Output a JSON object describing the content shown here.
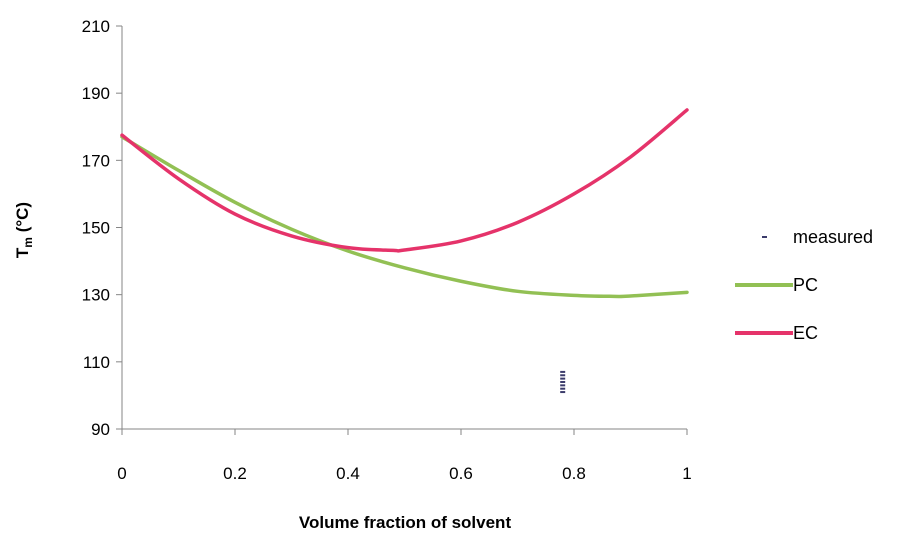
{
  "chart_data": {
    "type": "line",
    "xlabel": "Volume fraction of solvent",
    "ylabel_main": "T",
    "ylabel_sub": "m",
    "ylabel_unit": " (°C)",
    "xlim": [
      0,
      1
    ],
    "ylim": [
      90,
      210
    ],
    "x_ticks": [
      "0",
      "0.2",
      "0.4",
      "0.6",
      "0.8",
      "1"
    ],
    "y_ticks": [
      "90",
      "110",
      "130",
      "150",
      "170",
      "190",
      "210"
    ],
    "grid": false,
    "legend_position": "right",
    "legend": [
      "measured",
      "PC",
      "EC"
    ],
    "series": [
      {
        "name": "measured",
        "color": "#3b3b6b",
        "marker": "dash",
        "points": [
          [
            0.78,
            101
          ],
          [
            0.78,
            102
          ],
          [
            0.78,
            103
          ],
          [
            0.78,
            104
          ],
          [
            0.78,
            105
          ],
          [
            0.78,
            106
          ],
          [
            0.78,
            107
          ]
        ]
      },
      {
        "name": "PC",
        "color": "#92c054",
        "x": [
          0,
          0.1,
          0.2,
          0.3,
          0.4,
          0.5,
          0.6,
          0.7,
          0.8,
          0.87,
          0.9,
          1.0
        ],
        "y": [
          177,
          167,
          157.5,
          149.5,
          143,
          138,
          134,
          131,
          129.8,
          129.5,
          129.6,
          130.7
        ]
      },
      {
        "name": "EC",
        "color": "#e5336a",
        "x": [
          0,
          0.1,
          0.2,
          0.3,
          0.4,
          0.48,
          0.5,
          0.6,
          0.7,
          0.8,
          0.9,
          1.0
        ],
        "y": [
          177.5,
          164.5,
          154,
          147.5,
          144,
          143.2,
          143.3,
          146,
          151.5,
          160,
          171,
          185
        ]
      }
    ]
  }
}
